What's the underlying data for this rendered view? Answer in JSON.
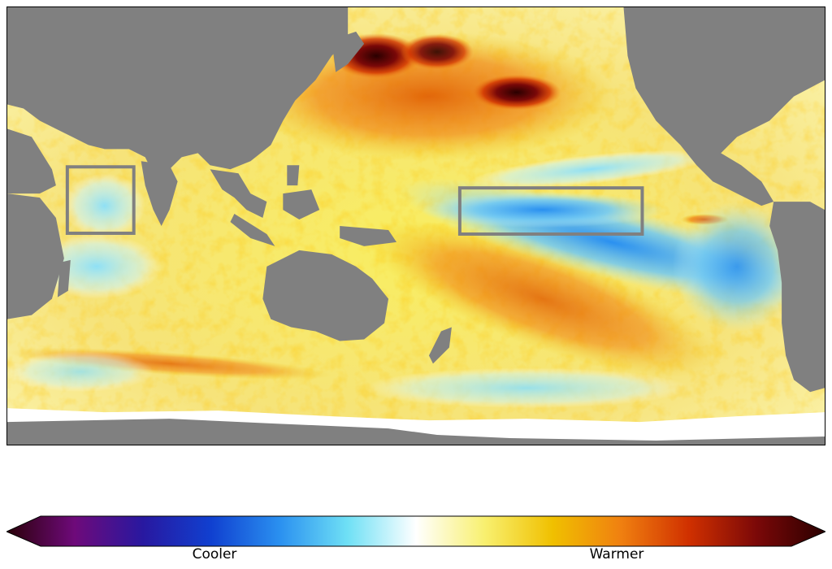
{
  "colorbar": {
    "labels": {
      "cooler": "Cooler",
      "warmer": "Warmer"
    },
    "stops": [
      "#2a0008",
      "#6e0a7a",
      "#2818a0",
      "#1040d0",
      "#2a90f0",
      "#6fe0f5",
      "#ffffff",
      "#f8f070",
      "#f0c000",
      "#f08010",
      "#d03000",
      "#7a0808",
      "#2a0000"
    ]
  },
  "map": {
    "description_colors": {
      "land": "#808080",
      "antarctic_ice": "#ffffff",
      "box_outline": "#808080"
    },
    "highlight_boxes": [
      "indian-ocean-box",
      "equatorial-pacific-box"
    ]
  }
}
